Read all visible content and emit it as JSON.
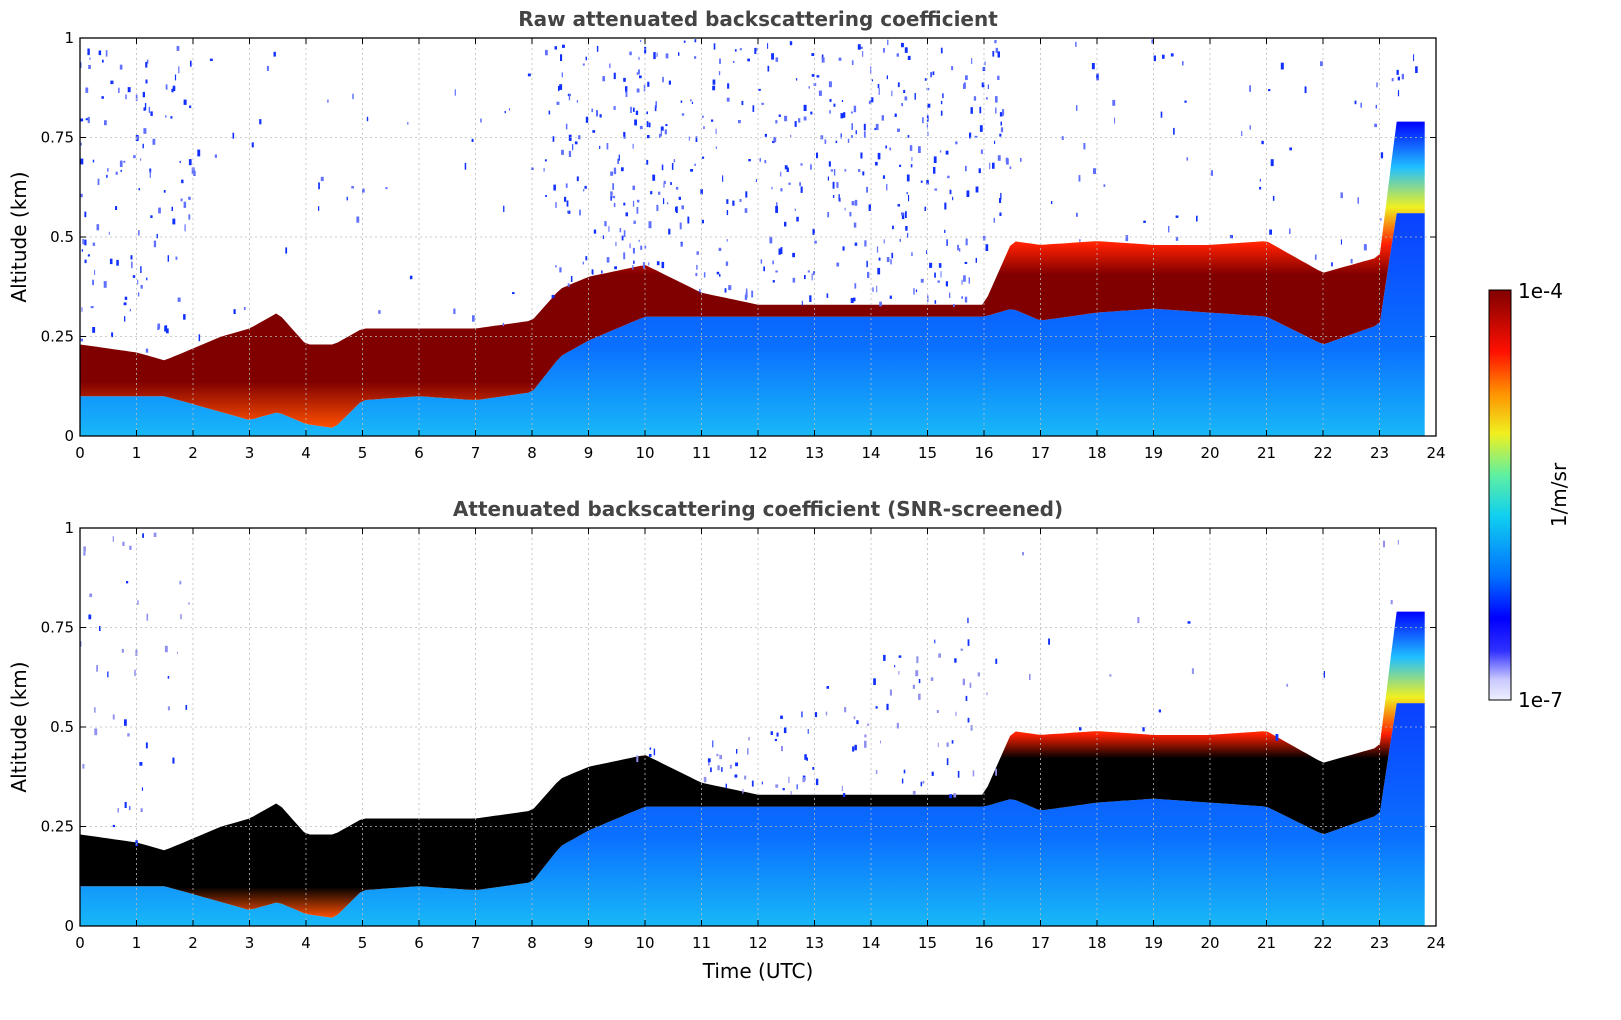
{
  "chart_data": [
    {
      "type": "heatmap",
      "title": "Raw attenuated backscattering coefficient",
      "xlabel": "",
      "ylabel": "Altitude (km)",
      "xlim": [
        0,
        24
      ],
      "ylim": [
        0,
        1
      ],
      "x_ticks": [
        "0",
        "1",
        "2",
        "3",
        "4",
        "5",
        "6",
        "7",
        "8",
        "9",
        "10",
        "11",
        "12",
        "13",
        "14",
        "15",
        "16",
        "17",
        "18",
        "19",
        "20",
        "21",
        "22",
        "23",
        "24"
      ],
      "y_ticks": [
        "0",
        "0.25",
        "0.5",
        "0.75",
        "1"
      ],
      "grid": true,
      "layer_profile": {
        "time_utc": [
          0,
          0.5,
          1,
          1.5,
          2,
          2.5,
          3,
          3.5,
          4,
          4.5,
          5,
          6,
          7,
          8,
          8.5,
          9,
          10,
          11,
          12,
          13,
          14,
          15,
          16,
          16.5,
          17,
          18,
          19,
          20,
          21,
          22,
          23,
          23.3,
          23.8
        ],
        "layer_top_km": [
          0.2,
          0.19,
          0.18,
          0.16,
          0.19,
          0.22,
          0.24,
          0.28,
          0.2,
          0.2,
          0.24,
          0.24,
          0.24,
          0.26,
          0.34,
          0.37,
          0.4,
          0.33,
          0.3,
          0.3,
          0.3,
          0.3,
          0.3,
          0.46,
          0.45,
          0.46,
          0.45,
          0.45,
          0.46,
          0.38,
          0.42,
          0.76,
          0.76
        ],
        "layer_bottom_km": [
          0.1,
          0.1,
          0.1,
          0.1,
          0.08,
          0.06,
          0.04,
          0.06,
          0.03,
          0.02,
          0.09,
          0.1,
          0.09,
          0.11,
          0.2,
          0.24,
          0.3,
          0.3,
          0.3,
          0.3,
          0.3,
          0.3,
          0.3,
          0.32,
          0.29,
          0.31,
          0.32,
          0.31,
          0.3,
          0.23,
          0.28,
          0.56,
          0.56
        ]
      }
    },
    {
      "type": "heatmap",
      "title": "Attenuated backscattering coefficient (SNR-screened)",
      "xlabel": "Time (UTC)",
      "ylabel": "Altitude (km)",
      "xlim": [
        0,
        24
      ],
      "ylim": [
        0,
        1
      ],
      "x_ticks": [
        "0",
        "1",
        "2",
        "3",
        "4",
        "5",
        "6",
        "7",
        "8",
        "9",
        "10",
        "11",
        "12",
        "13",
        "14",
        "15",
        "16",
        "17",
        "18",
        "19",
        "20",
        "21",
        "22",
        "23",
        "24"
      ],
      "y_ticks": [
        "0",
        "0.25",
        "0.5",
        "0.75",
        "1"
      ],
      "grid": true
    }
  ],
  "colorbar": {
    "label": "1/m/sr",
    "max_label": "1e-4",
    "min_label": "1e-7",
    "colors": [
      "#e8e8ff",
      "#1010ff",
      "#1070ff",
      "#1ad0f0",
      "#50f0b0",
      "#f0f020",
      "#ff8000",
      "#ff1000",
      "#800000"
    ]
  }
}
